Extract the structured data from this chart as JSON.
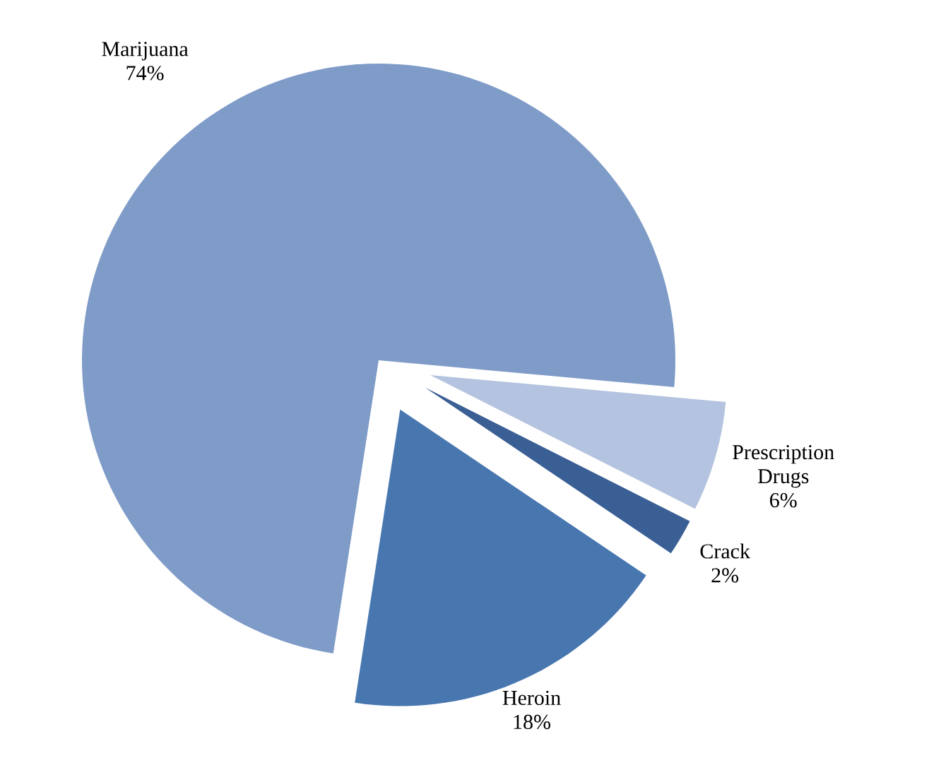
{
  "chart_data": {
    "type": "pie",
    "categories": [
      "Marijuana",
      "Heroin",
      "Crack",
      "Prescription Drugs"
    ],
    "values": [
      74,
      18,
      2,
      6
    ],
    "colors": [
      "#7f9cc8",
      "#4877b0",
      "#3a5f95",
      "#b4c3df"
    ],
    "value_labels": [
      "74%",
      "18%",
      "2%",
      "6%"
    ]
  }
}
